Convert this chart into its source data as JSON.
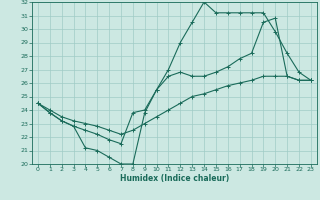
{
  "xlabel": "Humidex (Indice chaleur)",
  "bg_color": "#cce8e2",
  "grid_color": "#a0ccc6",
  "line_color": "#1a6b5a",
  "xlim_min": -0.5,
  "xlim_max": 23.5,
  "ylim_min": 20,
  "ylim_max": 32,
  "xticks": [
    0,
    1,
    2,
    3,
    4,
    5,
    6,
    7,
    8,
    9,
    10,
    11,
    12,
    13,
    14,
    15,
    16,
    17,
    18,
    19,
    20,
    21,
    22,
    23
  ],
  "yticks": [
    20,
    21,
    22,
    23,
    24,
    25,
    26,
    27,
    28,
    29,
    30,
    31,
    32
  ],
  "line1_x": [
    0,
    1,
    2,
    3,
    4,
    5,
    6,
    7,
    8,
    9,
    10,
    11,
    12,
    13,
    14,
    15,
    16,
    17,
    18,
    19,
    20,
    21,
    22,
    23
  ],
  "line1_y": [
    24.5,
    23.8,
    23.2,
    22.8,
    21.2,
    21.0,
    20.5,
    20.0,
    20.0,
    23.8,
    25.5,
    27.0,
    29.0,
    30.5,
    32.0,
    31.2,
    31.2,
    31.2,
    31.2,
    31.2,
    29.8,
    28.2,
    26.8,
    26.2
  ],
  "line2_x": [
    0,
    1,
    2,
    3,
    4,
    5,
    6,
    7,
    8,
    9,
    10,
    11,
    12,
    13,
    14,
    15,
    16,
    17,
    18,
    19,
    20,
    21,
    22,
    23
  ],
  "line2_y": [
    24.5,
    23.8,
    23.2,
    22.8,
    22.5,
    22.2,
    21.8,
    21.5,
    23.8,
    24.0,
    25.5,
    26.5,
    26.8,
    26.5,
    26.5,
    26.8,
    27.2,
    27.8,
    28.2,
    30.5,
    30.8,
    26.5,
    26.2,
    26.2
  ],
  "line3_x": [
    0,
    1,
    2,
    3,
    4,
    5,
    6,
    7,
    8,
    9,
    10,
    11,
    12,
    13,
    14,
    15,
    16,
    17,
    18,
    19,
    20,
    21,
    22,
    23
  ],
  "line3_y": [
    24.5,
    24.0,
    23.5,
    23.2,
    23.0,
    22.8,
    22.5,
    22.2,
    22.5,
    23.0,
    23.5,
    24.0,
    24.5,
    25.0,
    25.2,
    25.5,
    25.8,
    26.0,
    26.2,
    26.5,
    26.5,
    26.5,
    26.2,
    26.2
  ]
}
